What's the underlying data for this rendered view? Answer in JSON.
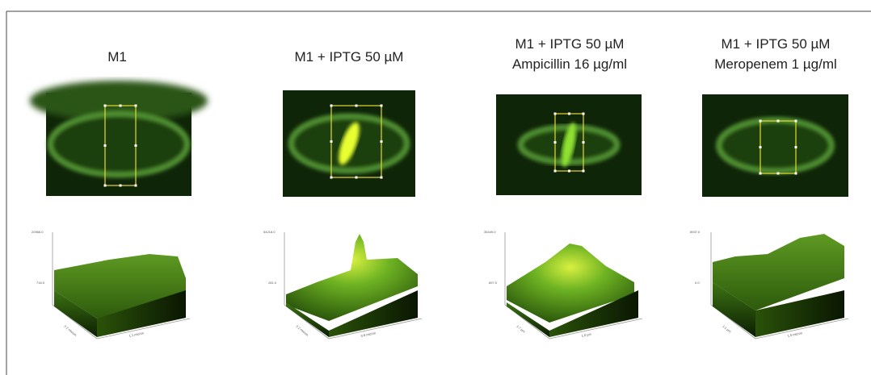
{
  "panels": [
    {
      "title": [
        "M1"
      ],
      "z_max": "20966.0",
      "z_min": "716.0",
      "y_axis": "2.2 micron",
      "x_axis": "1.1 micron"
    },
    {
      "title": [
        "M1 + IPTG 50 µM"
      ],
      "z_max": "54218.0",
      "z_min": "281.0",
      "y_axis": "2.2 micron",
      "x_axis": "0.8 micron"
    },
    {
      "title": [
        "M1 + IPTG 50 µM",
        "Ampicillin 16 µg/ml"
      ],
      "z_max": "35449.0",
      "z_min": "697.0",
      "y_axis": "1.7 µm",
      "x_axis": "1.0 µm"
    },
    {
      "title": [
        "M1 + IPTG 50 µM",
        "Meropenem 1 µg/ml"
      ],
      "z_max": "8937.0",
      "z_min": "0.0",
      "y_axis": "1.1 µm",
      "x_axis": "1.5 micron"
    }
  ]
}
